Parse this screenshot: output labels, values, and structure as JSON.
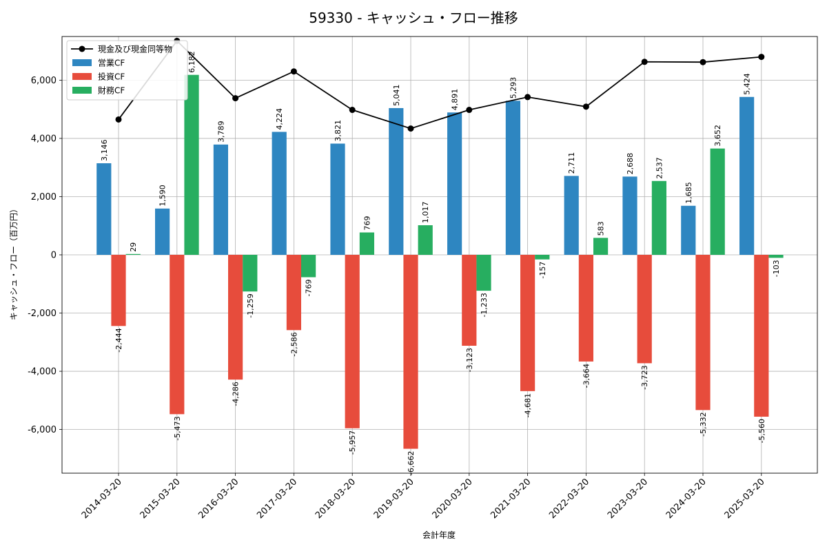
{
  "chart_data": {
    "type": "bar",
    "title": "59330 - キャッシュ・フロー推移",
    "xlabel": "会計年度",
    "ylabel": "キャッシュ・フロー（百万円）",
    "ylim": [
      -7500,
      7500
    ],
    "yticks": [
      -6000,
      -4000,
      -2000,
      0,
      2000,
      4000,
      6000
    ],
    "ytick_labels": [
      "-6,000",
      "-4,000",
      "-2,000",
      "0",
      "2,000",
      "4,000",
      "6,000"
    ],
    "grid": true,
    "legend_position": "top-left",
    "categories": [
      "2014-03-20",
      "2015-03-20",
      "2016-03-20",
      "2017-03-20",
      "2018-03-20",
      "2019-03-20",
      "2020-03-20",
      "2021-03-20",
      "2022-03-20",
      "2023-03-20",
      "2024-03-20",
      "2025-03-20"
    ],
    "series": [
      {
        "name": "営業CF",
        "type": "bar",
        "color": "#2e86c1",
        "values": [
          3146,
          1590,
          3789,
          4224,
          3821,
          5041,
          4891,
          5293,
          2711,
          2688,
          1685,
          5424
        ],
        "labels": [
          "3,146",
          "1,590",
          "3,789",
          "4,224",
          "3,821",
          "5,041",
          "4,891",
          "5,293",
          "2,711",
          "2,688",
          "1,685",
          "5,424"
        ]
      },
      {
        "name": "投資CF",
        "type": "bar",
        "color": "#e74c3c",
        "values": [
          -2444,
          -5473,
          -4286,
          -2586,
          -5957,
          -6662,
          -3123,
          -4681,
          -3664,
          -3723,
          -5332,
          -5560
        ],
        "labels": [
          "-2,444",
          "-5,473",
          "-4,286",
          "-2,586",
          "-5,957",
          "-6,662",
          "-3,123",
          "-4,681",
          "-3,664",
          "-3,723",
          "-5,332",
          "-5,560"
        ]
      },
      {
        "name": "財務CF",
        "type": "bar",
        "color": "#27ae60",
        "values": [
          29,
          6182,
          -1259,
          -769,
          769,
          1017,
          -1233,
          -157,
          583,
          2537,
          3652,
          -103
        ],
        "labels": [
          "29",
          "6,182",
          "-1,259",
          "-769",
          "769",
          "1,017",
          "-1,233",
          "-157",
          "583",
          "2,537",
          "3,652",
          "-103"
        ]
      },
      {
        "name": "現金及び現金同等物",
        "type": "line",
        "color": "#000000",
        "values": [
          4650,
          7350,
          5380,
          6300,
          4980,
          4340,
          4980,
          5420,
          5090,
          6630,
          6620,
          6800
        ]
      }
    ]
  }
}
